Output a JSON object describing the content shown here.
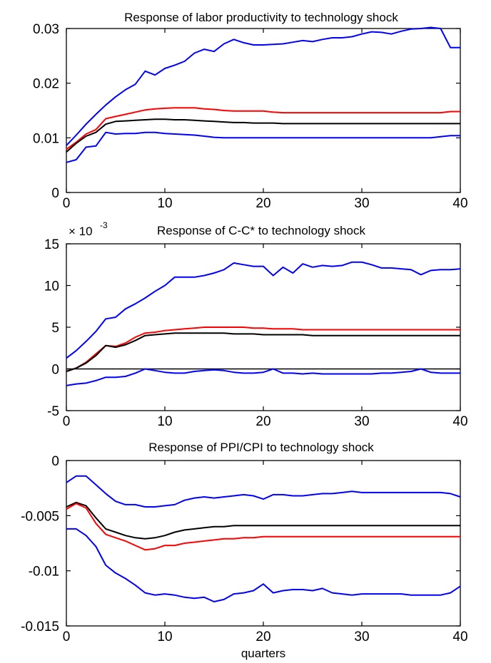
{
  "colors": {
    "upper": "#0000ff",
    "point": "#000000",
    "median": "#ff0000",
    "lower": "#0000ff"
  },
  "chart_data": [
    {
      "type": "line",
      "title": "Response of labor productivity to technology shock",
      "xlabel": "",
      "ylabel": "",
      "exponent_label": "",
      "xlim": [
        0,
        40
      ],
      "ylim": [
        0,
        0.03
      ],
      "xticks": [
        0,
        10,
        20,
        30,
        40
      ],
      "yticks": [
        0,
        0.01,
        0.02,
        0.03
      ],
      "ytick_labels": [
        "0",
        "0.01",
        "0.02",
        "0.03"
      ],
      "zero_line": false,
      "x": [
        0,
        1,
        2,
        3,
        4,
        5,
        6,
        7,
        8,
        9,
        10,
        11,
        12,
        13,
        14,
        15,
        16,
        17,
        18,
        19,
        20,
        21,
        22,
        23,
        24,
        25,
        26,
        27,
        28,
        29,
        30,
        31,
        32,
        33,
        34,
        35,
        36,
        37,
        38,
        39,
        40
      ],
      "series": [
        {
          "color_key": "upper",
          "values": [
            0.0086,
            0.0105,
            0.0125,
            0.0143,
            0.016,
            0.0175,
            0.0188,
            0.0198,
            0.0222,
            0.0215,
            0.0227,
            0.0233,
            0.024,
            0.0255,
            0.0262,
            0.0258,
            0.0272,
            0.028,
            0.0274,
            0.027,
            0.027,
            0.0271,
            0.0272,
            0.0275,
            0.0278,
            0.0276,
            0.028,
            0.0283,
            0.0283,
            0.0285,
            0.029,
            0.0294,
            0.0293,
            0.029,
            0.0295,
            0.0299,
            0.03,
            0.0302,
            0.03,
            0.0265,
            0.0265
          ]
        },
        {
          "color_key": "median",
          "values": [
            0.0079,
            0.0092,
            0.0107,
            0.0115,
            0.0135,
            0.0139,
            0.0143,
            0.0147,
            0.0151,
            0.0153,
            0.0154,
            0.0155,
            0.0155,
            0.0155,
            0.0153,
            0.0152,
            0.015,
            0.0149,
            0.0149,
            0.0149,
            0.0149,
            0.0147,
            0.0146,
            0.0146,
            0.0146,
            0.0146,
            0.0146,
            0.0146,
            0.0146,
            0.0146,
            0.0146,
            0.0146,
            0.0146,
            0.0146,
            0.0146,
            0.0146,
            0.0146,
            0.0146,
            0.0146,
            0.0148,
            0.0148
          ]
        },
        {
          "color_key": "point",
          "values": [
            0.0074,
            0.009,
            0.0103,
            0.011,
            0.0125,
            0.013,
            0.0131,
            0.0132,
            0.0133,
            0.0134,
            0.0134,
            0.0133,
            0.0133,
            0.0132,
            0.0131,
            0.013,
            0.0129,
            0.0128,
            0.0128,
            0.0127,
            0.0127,
            0.0127,
            0.0126,
            0.0126,
            0.0126,
            0.0126,
            0.0126,
            0.0126,
            0.0126,
            0.0126,
            0.0126,
            0.0126,
            0.0126,
            0.0126,
            0.0126,
            0.0126,
            0.0126,
            0.0126,
            0.0126,
            0.0126,
            0.0126
          ]
        },
        {
          "color_key": "lower",
          "values": [
            0.0055,
            0.006,
            0.0083,
            0.0085,
            0.011,
            0.0107,
            0.0108,
            0.0108,
            0.011,
            0.011,
            0.0108,
            0.0107,
            0.0106,
            0.0105,
            0.0103,
            0.0101,
            0.01,
            0.01,
            0.01,
            0.01,
            0.01,
            0.01,
            0.01,
            0.01,
            0.01,
            0.01,
            0.01,
            0.01,
            0.01,
            0.01,
            0.01,
            0.01,
            0.01,
            0.01,
            0.01,
            0.01,
            0.01,
            0.01,
            0.0102,
            0.0104,
            0.0104
          ]
        }
      ]
    },
    {
      "type": "line",
      "title": "Response of C-C* to technology shock",
      "xlabel": "",
      "ylabel": "",
      "exponent_label": "× 10",
      "exponent_power": "-3",
      "xlim": [
        0,
        40
      ],
      "ylim": [
        -5,
        15
      ],
      "xticks": [
        0,
        10,
        20,
        30,
        40
      ],
      "yticks": [
        -5,
        0,
        5,
        10,
        15
      ],
      "ytick_labels": [
        "-5",
        "0",
        "5",
        "10",
        "15"
      ],
      "zero_line": true,
      "x": [
        0,
        1,
        2,
        3,
        4,
        5,
        6,
        7,
        8,
        9,
        10,
        11,
        12,
        13,
        14,
        15,
        16,
        17,
        18,
        19,
        20,
        21,
        22,
        23,
        24,
        25,
        26,
        27,
        28,
        29,
        30,
        31,
        32,
        33,
        34,
        35,
        36,
        37,
        38,
        39,
        40
      ],
      "series": [
        {
          "color_key": "upper",
          "values": [
            1.3,
            2.2,
            3.3,
            4.5,
            6,
            6.2,
            7.2,
            7.8,
            8.5,
            9.3,
            10,
            11,
            11,
            11,
            11.2,
            11.5,
            11.9,
            12.7,
            12.5,
            12.3,
            12.3,
            11.2,
            12.2,
            11.5,
            12.6,
            12.2,
            12.4,
            12.3,
            12.4,
            12.8,
            12.8,
            12.5,
            12.1,
            12.1,
            12,
            11.9,
            11.3,
            11.8,
            11.9,
            11.9,
            12
          ]
        },
        {
          "color_key": "median",
          "values": [
            -0.3,
            0.1,
            0.8,
            1.8,
            2.8,
            2.7,
            3.1,
            3.8,
            4.3,
            4.4,
            4.6,
            4.7,
            4.8,
            4.9,
            5,
            5,
            5,
            5,
            5,
            4.9,
            4.9,
            4.8,
            4.8,
            4.8,
            4.7,
            4.7,
            4.7,
            4.7,
            4.7,
            4.7,
            4.7,
            4.7,
            4.7,
            4.7,
            4.7,
            4.7,
            4.7,
            4.7,
            4.7,
            4.7,
            4.7
          ]
        },
        {
          "color_key": "point",
          "values": [
            -0.3,
            0.1,
            0.7,
            1.6,
            2.8,
            2.6,
            2.9,
            3.4,
            4,
            4.1,
            4.2,
            4.3,
            4.3,
            4.3,
            4.3,
            4.3,
            4.3,
            4.2,
            4.2,
            4.2,
            4.1,
            4.1,
            4.1,
            4.1,
            4.1,
            4,
            4,
            4,
            4,
            4,
            4,
            4,
            4,
            4,
            4,
            4,
            4,
            4,
            4,
            4,
            4
          ]
        },
        {
          "color_key": "lower",
          "values": [
            -2,
            -1.8,
            -1.7,
            -1.4,
            -1,
            -1,
            -0.9,
            -0.5,
            0,
            -0.2,
            -0.4,
            -0.5,
            -0.5,
            -0.3,
            -0.2,
            -0.1,
            -0.2,
            -0.4,
            -0.5,
            -0.5,
            -0.4,
            0,
            -0.5,
            -0.5,
            -0.6,
            -0.5,
            -0.6,
            -0.6,
            -0.6,
            -0.6,
            -0.6,
            -0.6,
            -0.5,
            -0.5,
            -0.4,
            -0.3,
            0,
            -0.4,
            -0.5,
            -0.5,
            -0.5
          ]
        }
      ]
    },
    {
      "type": "line",
      "title": "Response of PPI/CPI to technology shock",
      "xlabel": "quarters",
      "ylabel": "",
      "exponent_label": "",
      "xlim": [
        0,
        40
      ],
      "ylim": [
        -0.015,
        0
      ],
      "xticks": [
        0,
        10,
        20,
        30,
        40
      ],
      "yticks": [
        -0.015,
        -0.01,
        -0.005,
        0
      ],
      "ytick_labels": [
        "-0.015",
        "-0.01",
        "-0.005",
        "0"
      ],
      "zero_line": false,
      "x": [
        0,
        1,
        2,
        3,
        4,
        5,
        6,
        7,
        8,
        9,
        10,
        11,
        12,
        13,
        14,
        15,
        16,
        17,
        18,
        19,
        20,
        21,
        22,
        23,
        24,
        25,
        26,
        27,
        28,
        29,
        30,
        31,
        32,
        33,
        34,
        35,
        36,
        37,
        38,
        39,
        40
      ],
      "series": [
        {
          "color_key": "upper",
          "values": [
            -0.002,
            -0.0014,
            -0.0014,
            -0.0022,
            -0.003,
            -0.0037,
            -0.004,
            -0.004,
            -0.0042,
            -0.0042,
            -0.0041,
            -0.004,
            -0.0036,
            -0.0034,
            -0.0033,
            -0.0034,
            -0.0033,
            -0.0032,
            -0.0031,
            -0.0032,
            -0.0035,
            -0.0031,
            -0.0031,
            -0.0032,
            -0.0032,
            -0.0031,
            -0.003,
            -0.003,
            -0.0029,
            -0.0028,
            -0.0029,
            -0.0029,
            -0.0029,
            -0.0029,
            -0.0029,
            -0.0029,
            -0.0029,
            -0.0029,
            -0.0029,
            -0.003,
            -0.0033
          ]
        },
        {
          "color_key": "point",
          "values": [
            -0.0042,
            -0.0038,
            -0.0041,
            -0.0052,
            -0.0062,
            -0.0065,
            -0.0068,
            -0.007,
            -0.0071,
            -0.007,
            -0.0068,
            -0.0065,
            -0.0063,
            -0.0062,
            -0.0061,
            -0.006,
            -0.006,
            -0.0059,
            -0.0059,
            -0.0059,
            -0.0059,
            -0.0059,
            -0.0059,
            -0.0059,
            -0.0059,
            -0.0059,
            -0.0059,
            -0.0059,
            -0.0059,
            -0.0059,
            -0.0059,
            -0.0059,
            -0.0059,
            -0.0059,
            -0.0059,
            -0.0059,
            -0.0059,
            -0.0059,
            -0.0059,
            -0.0059,
            -0.0059
          ]
        },
        {
          "color_key": "median",
          "values": [
            -0.0044,
            -0.0039,
            -0.0043,
            -0.0057,
            -0.0067,
            -0.007,
            -0.0073,
            -0.0077,
            -0.0081,
            -0.008,
            -0.0077,
            -0.0077,
            -0.0075,
            -0.0074,
            -0.0073,
            -0.0072,
            -0.0071,
            -0.0071,
            -0.007,
            -0.007,
            -0.0069,
            -0.0069,
            -0.0069,
            -0.0069,
            -0.0069,
            -0.0069,
            -0.0069,
            -0.0069,
            -0.0069,
            -0.0069,
            -0.0069,
            -0.0069,
            -0.0069,
            -0.0069,
            -0.0069,
            -0.0069,
            -0.0069,
            -0.0069,
            -0.0069,
            -0.0069,
            -0.0069
          ]
        },
        {
          "color_key": "lower",
          "values": [
            -0.0062,
            -0.0062,
            -0.0068,
            -0.0078,
            -0.0095,
            -0.0102,
            -0.0107,
            -0.0113,
            -0.012,
            -0.0122,
            -0.0121,
            -0.0122,
            -0.0124,
            -0.0125,
            -0.0124,
            -0.0128,
            -0.0126,
            -0.0121,
            -0.012,
            -0.0118,
            -0.0112,
            -0.012,
            -0.0118,
            -0.0117,
            -0.0117,
            -0.0118,
            -0.0116,
            -0.012,
            -0.0121,
            -0.0122,
            -0.0121,
            -0.0121,
            -0.0121,
            -0.0121,
            -0.0121,
            -0.0122,
            -0.0122,
            -0.0122,
            -0.0122,
            -0.012,
            -0.0114
          ]
        }
      ]
    }
  ]
}
